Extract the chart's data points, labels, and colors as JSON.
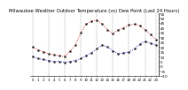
{
  "title": "Milwaukee Weather Outdoor Temperature (vs) Dew Point (Last 24 Hours)",
  "title_fontsize": 3.8,
  "background_color": "#ffffff",
  "temp_color": "#dd0000",
  "dew_color": "#0000cc",
  "marker_color": "#000000",
  "ylim": [
    -10,
    55
  ],
  "yticks": [
    -10,
    -5,
    0,
    5,
    10,
    15,
    20,
    25,
    30,
    35,
    40,
    45,
    50,
    55
  ],
  "ytick_fontsize": 3.0,
  "xtick_fontsize": 2.8,
  "grid_color": "#999999",
  "hours": [
    0,
    1,
    2,
    3,
    4,
    5,
    6,
    7,
    8,
    9,
    10,
    11,
    12,
    13,
    14,
    15,
    16,
    17,
    18,
    19,
    20,
    21,
    22,
    23
  ],
  "temp": [
    20,
    17,
    15,
    13,
    12,
    11,
    10,
    16,
    22,
    35,
    44,
    47,
    48,
    44,
    38,
    34,
    38,
    40,
    43,
    44,
    42,
    38,
    33,
    28
  ],
  "dew": [
    10,
    8,
    7,
    6,
    5,
    5,
    4,
    5,
    6,
    8,
    11,
    14,
    18,
    22,
    20,
    16,
    13,
    14,
    15,
    18,
    23,
    26,
    24,
    22
  ],
  "vlines": [
    0,
    3,
    6,
    9,
    12,
    15,
    18,
    21,
    23
  ],
  "line_width": 0.6,
  "marker_size": 1.2,
  "figwidth": 1.6,
  "figheight": 0.87
}
